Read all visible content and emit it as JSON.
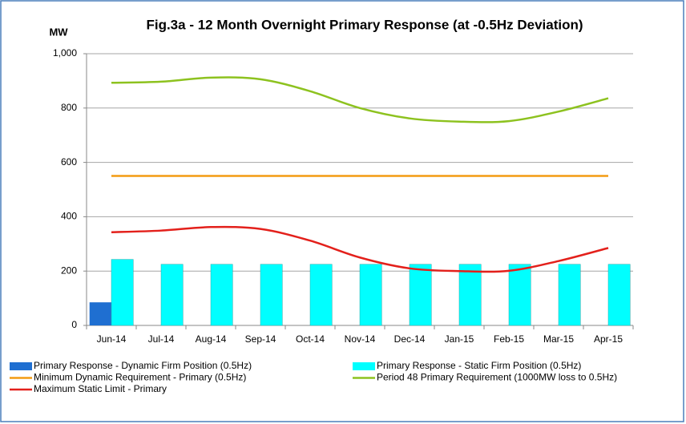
{
  "chart_data": {
    "type": "bar",
    "title": "Fig.3a - 12 Month Overnight Primary Response (at -0.5Hz Deviation)",
    "y_label": "MW",
    "categories": [
      "Jun-14",
      "Jul-14",
      "Aug-14",
      "Sep-14",
      "Oct-14",
      "Nov-14",
      "Dec-14",
      "Jan-15",
      "Feb-15",
      "Mar-15",
      "Apr-15"
    ],
    "series": [
      {
        "name": "Primary Response - Dynamic Firm Position (0.5Hz)",
        "type": "bar",
        "color": "#1f6fd1",
        "values": [
          85,
          null,
          null,
          null,
          null,
          null,
          null,
          null,
          null,
          null,
          null
        ]
      },
      {
        "name": "Primary Response - Static Firm Position (0.5Hz)",
        "type": "bar",
        "color": "#00ffff",
        "values": [
          243,
          225,
          225,
          225,
          225,
          225,
          225,
          225,
          225,
          225,
          225
        ]
      },
      {
        "name": "Minimum Dynamic Requirement - Primary  (0.5Hz)",
        "type": "line",
        "color": "#f39c12",
        "values": [
          550,
          550,
          550,
          550,
          550,
          550,
          550,
          550,
          550,
          550,
          550
        ]
      },
      {
        "name": "Period 48 Primary Requirement (1000MW loss to 0.5Hz)",
        "type": "line",
        "color": "#8dc21f",
        "values": [
          893,
          897,
          912,
          906,
          862,
          800,
          762,
          750,
          752,
          787,
          836
        ]
      },
      {
        "name": "Maximum Static Limit - Primary",
        "type": "line",
        "color": "#e3201b",
        "values": [
          343,
          349,
          362,
          355,
          312,
          250,
          210,
          200,
          201,
          237,
          285
        ]
      }
    ],
    "ylim": [
      0,
      1000
    ],
    "yticks": [
      0,
      200,
      400,
      600,
      800,
      {
        "value": 1000,
        "label": "1,000"
      }
    ],
    "grid": true
  }
}
